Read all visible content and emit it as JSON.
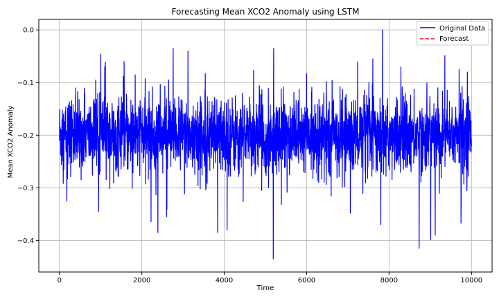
{
  "chart_data": {
    "type": "line",
    "title": "Forecasting Mean XCO2 Anomaly using LSTM",
    "xlabel": "Time",
    "ylabel": "Mean XCO2 Anomaly",
    "xlim": [
      -500,
      10500
    ],
    "ylim": [
      -0.46,
      0.02
    ],
    "xticks": [
      0,
      2000,
      4000,
      6000,
      8000,
      10000
    ],
    "yticks": [
      -0.4,
      -0.3,
      -0.2,
      -0.1,
      0.0
    ],
    "ytick_labels": [
      "−0.4",
      "−0.3",
      "−0.2",
      "−0.1",
      "0.0"
    ],
    "xtick_labels": [
      "0",
      "2000",
      "4000",
      "6000",
      "8000",
      "10000"
    ],
    "grid": true,
    "legend_position": "top-right",
    "series": [
      {
        "name": "Original Data",
        "color": "#0000ff",
        "style": "solid",
        "x_range": [
          0,
          10000
        ],
        "num_points": 10000,
        "baseline": -0.2,
        "typical_upper": -0.13,
        "typical_lower": -0.27,
        "notable_points": [
          {
            "x": 7840,
            "y": 0.0
          },
          {
            "x": 2760,
            "y": -0.035
          },
          {
            "x": 3120,
            "y": -0.04
          },
          {
            "x": 5190,
            "y": -0.435
          },
          {
            "x": 8730,
            "y": -0.415
          },
          {
            "x": 9120,
            "y": -0.39
          },
          {
            "x": 2390,
            "y": -0.385
          },
          {
            "x": 3840,
            "y": -0.385
          },
          {
            "x": 4070,
            "y": -0.38
          },
          {
            "x": 5200,
            "y": -0.035
          },
          {
            "x": 950,
            "y": -0.345
          },
          {
            "x": 1100,
            "y": -0.07
          },
          {
            "x": 2600,
            "y": -0.355
          },
          {
            "x": 7800,
            "y": -0.37
          },
          {
            "x": 9700,
            "y": -0.075
          },
          {
            "x": 9900,
            "y": -0.08
          },
          {
            "x": 180,
            "y": -0.325
          }
        ]
      },
      {
        "name": "Forecast",
        "color": "#ff0000",
        "style": "dashed",
        "values": []
      }
    ]
  }
}
